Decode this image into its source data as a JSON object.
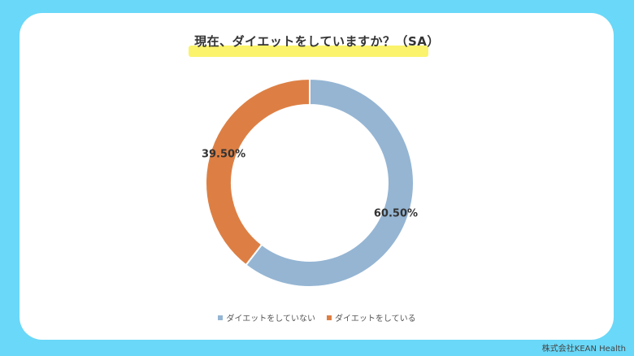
{
  "title": "現在、ダイエットをしていますか？（SA）",
  "credit": "株式会社KEAN Health",
  "chart_data": {
    "type": "pie",
    "donut": true,
    "categories": [
      "ダイエットをしていない",
      "ダイエットをしている"
    ],
    "values": [
      60.5,
      39.5
    ],
    "data_labels": [
      "60.50%",
      "39.50%"
    ],
    "colors": [
      "#95b5d3",
      "#dd7f44"
    ],
    "legend_position": "bottom"
  }
}
